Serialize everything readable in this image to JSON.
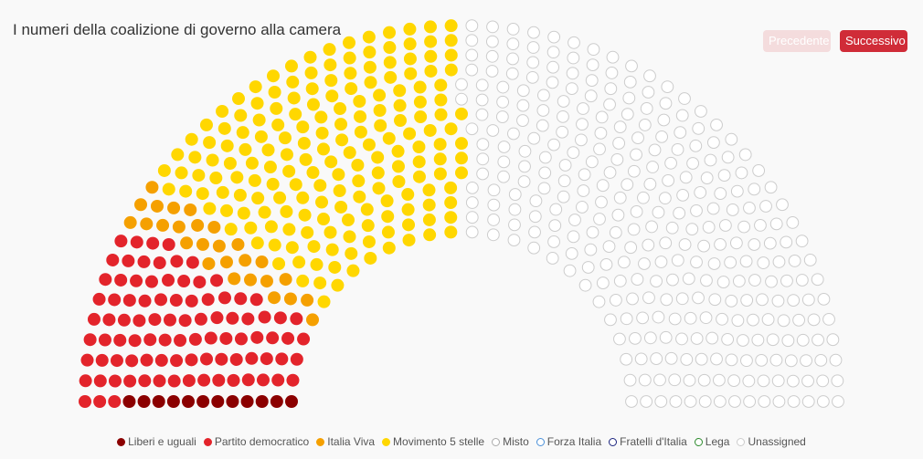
{
  "title": "I numeri della coalizione di governo alla camera",
  "buttons": {
    "prev": "Precedente",
    "next": "Successivo"
  },
  "chart_data": {
    "type": "parliament",
    "total_seats": 630,
    "series": [
      {
        "name": "Liberi e uguali",
        "seats": 12,
        "color": "#8b0000",
        "filled": true
      },
      {
        "name": "Partito democratico",
        "seats": 91,
        "color": "#e3242b",
        "filled": true
      },
      {
        "name": "Italia Viva",
        "seats": 27,
        "color": "#f5a000",
        "filled": true
      },
      {
        "name": "Movimento 5 stelle",
        "seats": 186,
        "color": "#ffd700",
        "filled": true
      },
      {
        "name": "Misto",
        "seats": 0,
        "color": "#aaaaaa",
        "filled": false
      },
      {
        "name": "Forza Italia",
        "seats": 0,
        "color": "#4a90d9",
        "filled": false
      },
      {
        "name": "Fratelli d'Italia",
        "seats": 0,
        "color": "#1a237e",
        "filled": false
      },
      {
        "name": "Lega",
        "seats": 0,
        "color": "#2e8b2e",
        "filled": false
      },
      {
        "name": "Unassigned",
        "seats": 314,
        "color": "#cccccc",
        "filled": false
      }
    ]
  }
}
